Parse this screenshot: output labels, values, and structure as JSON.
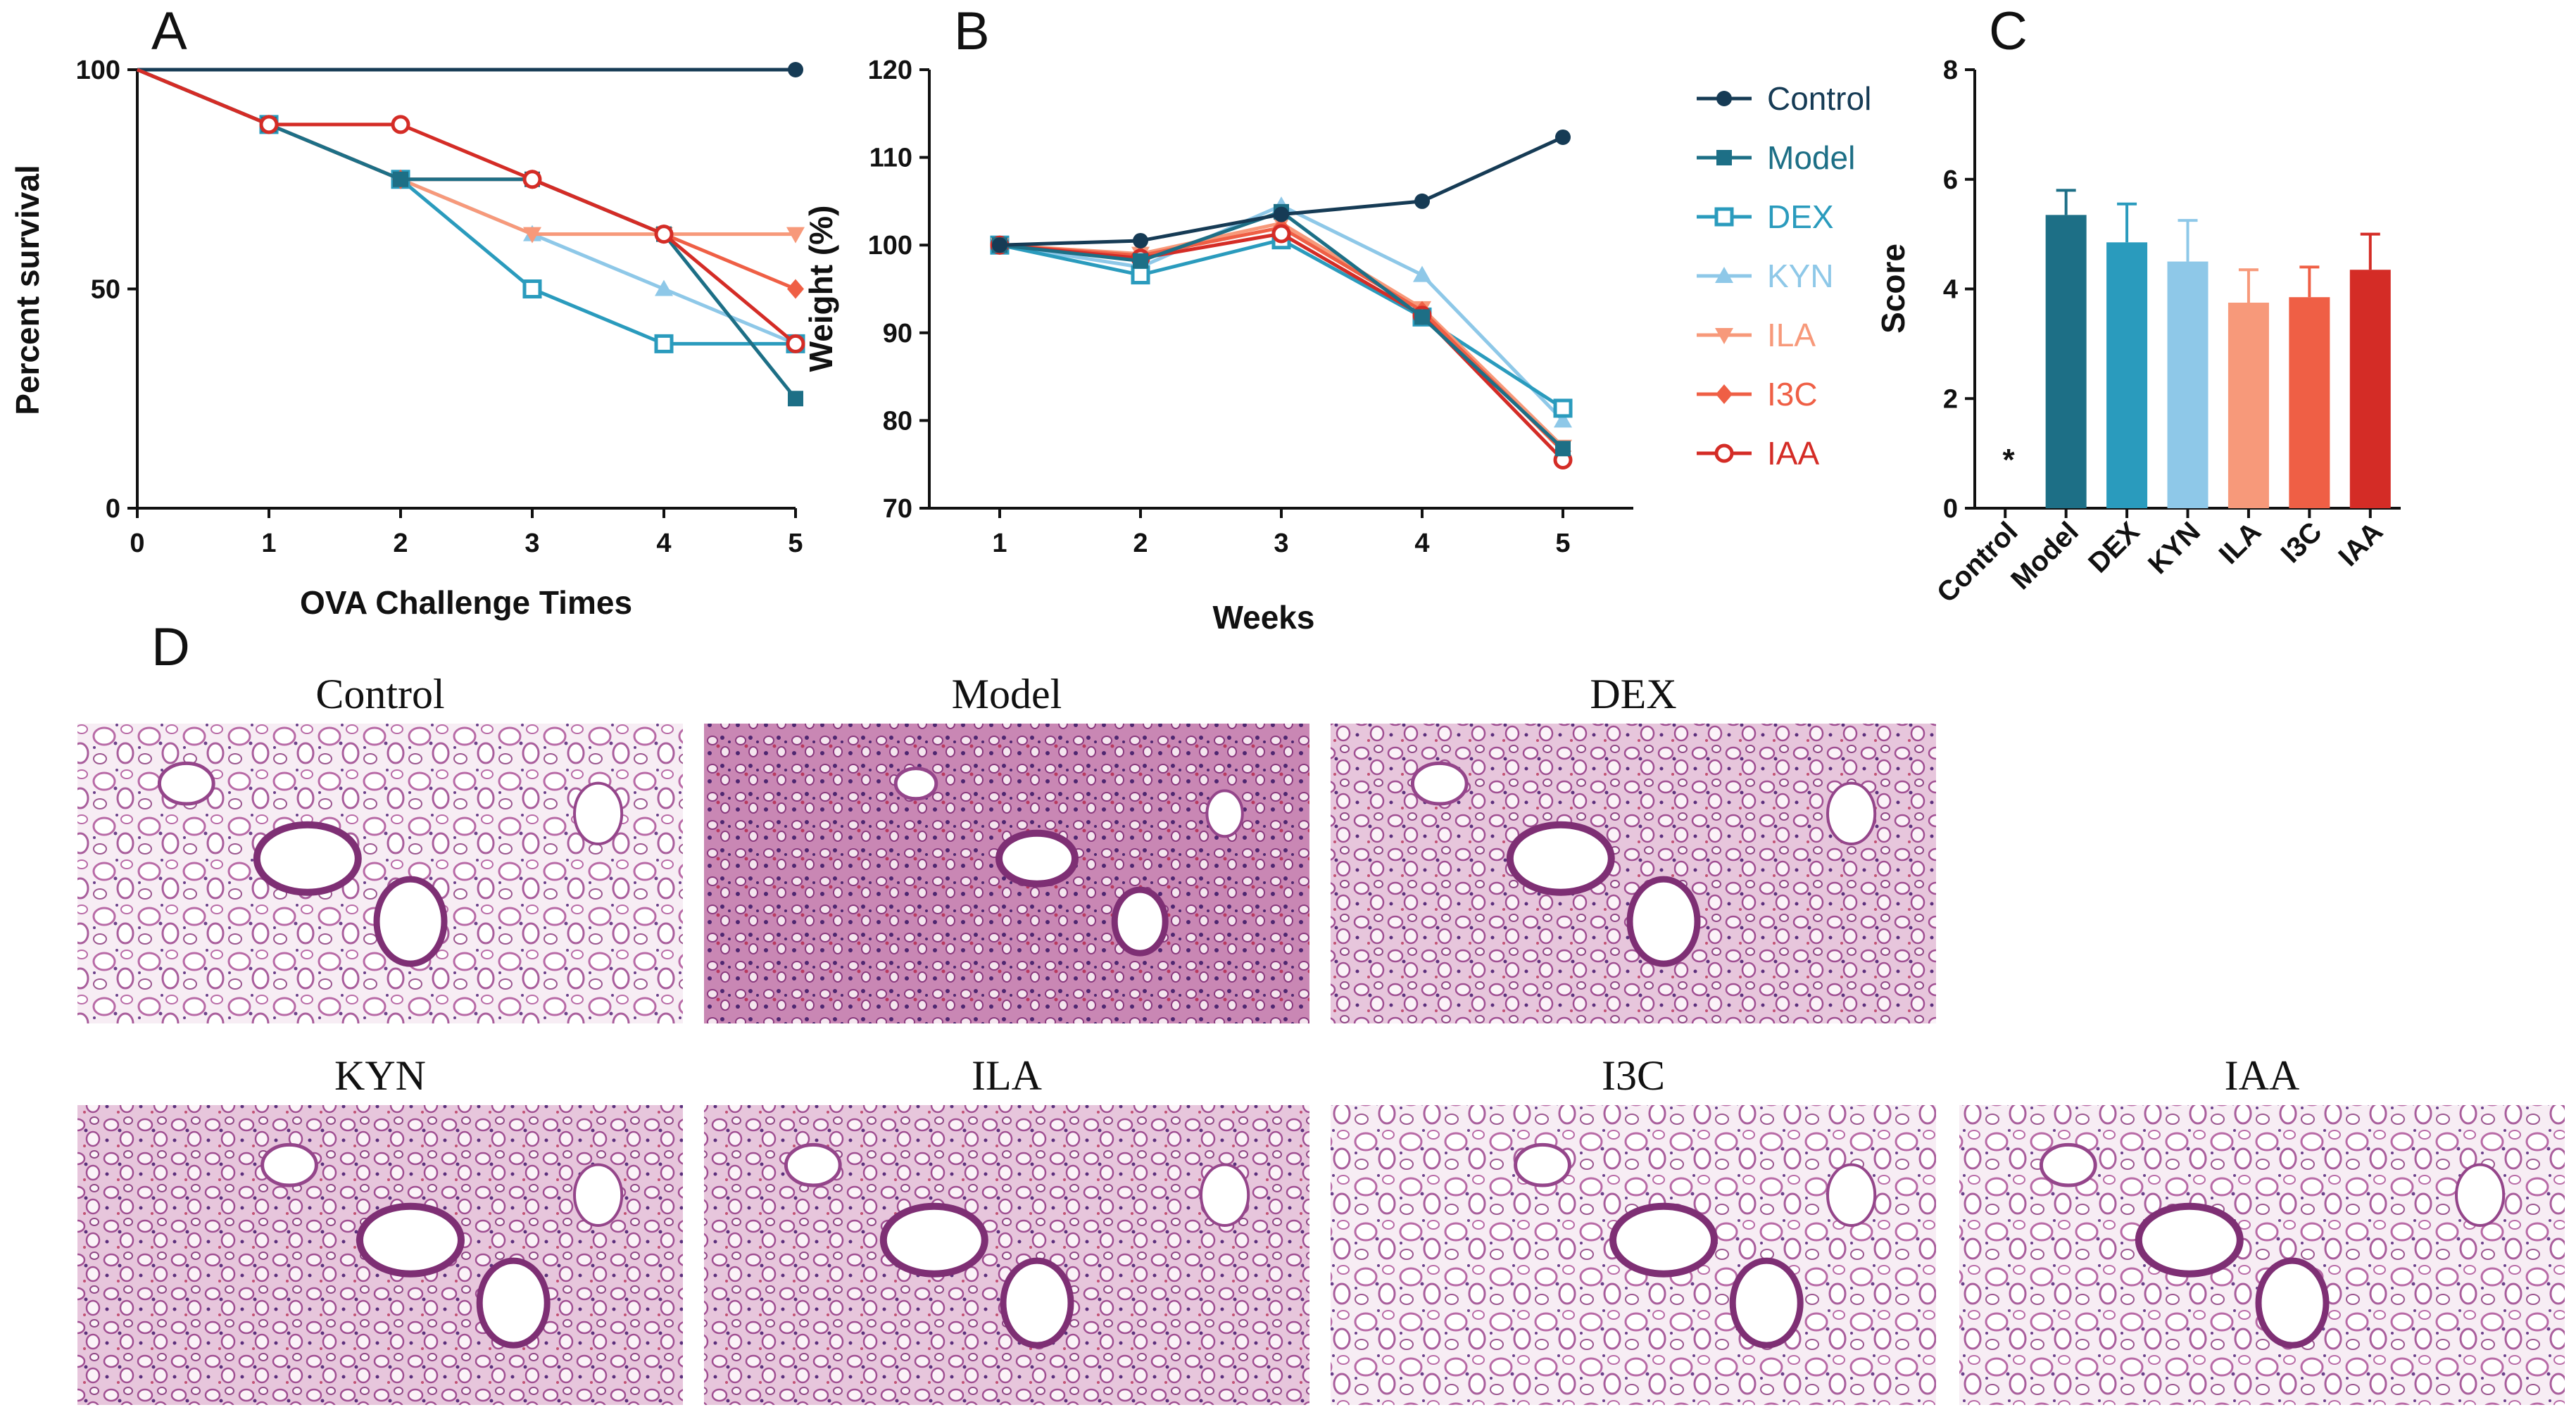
{
  "panels": {
    "a": "A",
    "b": "B",
    "c": "C",
    "d": "D"
  },
  "colors": {
    "Control": "#163b55",
    "Model": "#1d6f86",
    "DEX": "#2a9bbd",
    "KYN": "#8ec8e8",
    "ILA": "#f7997a",
    "I3C": "#ef5f45",
    "IAA": "#d42c26"
  },
  "chart_data": [
    {
      "id": "survival",
      "type": "line",
      "title": "",
      "xlabel": "OVA Challenge Times",
      "ylabel": "Percent survival",
      "x": [
        0,
        1,
        2,
        3,
        4,
        5
      ],
      "xlim": [
        0,
        5
      ],
      "ylim": [
        0,
        100
      ],
      "xticks": [
        "0",
        "1",
        "2",
        "3",
        "4",
        "5"
      ],
      "yticks": [
        "0",
        "50",
        "100"
      ],
      "series": [
        {
          "name": "Control",
          "values": [
            100,
            100,
            100,
            100,
            100,
            100
          ]
        },
        {
          "name": "Model",
          "values": [
            100,
            87.5,
            75,
            75,
            62.5,
            25
          ]
        },
        {
          "name": "DEX",
          "values": [
            100,
            87.5,
            75,
            50,
            37.5,
            37.5
          ]
        },
        {
          "name": "KYN",
          "values": [
            100,
            87.5,
            75,
            62.5,
            50,
            37.5
          ]
        },
        {
          "name": "ILA",
          "values": [
            100,
            87.5,
            75,
            62.5,
            62.5,
            62.5
          ]
        },
        {
          "name": "I3C",
          "values": [
            100,
            87.5,
            75,
            75,
            62.5,
            50
          ]
        },
        {
          "name": "IAA",
          "values": [
            100,
            87.5,
            87.5,
            75,
            62.5,
            37.5
          ]
        }
      ]
    },
    {
      "id": "weight",
      "type": "line",
      "title": "",
      "xlabel": "Weeks",
      "ylabel": "Weight (%)",
      "x": [
        1,
        2,
        3,
        4,
        5
      ],
      "xlim": [
        0.5,
        5.5
      ],
      "ylim": [
        70,
        120
      ],
      "xticks": [
        "1",
        "2",
        "3",
        "4",
        "5"
      ],
      "yticks": [
        "70",
        "80",
        "90",
        "100",
        "110",
        "120"
      ],
      "series": [
        {
          "name": "Control",
          "values": [
            100,
            100.5,
            103.5,
            105,
            112.3
          ]
        },
        {
          "name": "Model",
          "values": [
            100,
            98.2,
            103.8,
            91.8,
            76.8
          ]
        },
        {
          "name": "DEX",
          "values": [
            100,
            96.6,
            100.6,
            91.8,
            81.4
          ]
        },
        {
          "name": "KYN",
          "values": [
            100,
            97.5,
            104.5,
            96.6,
            80
          ]
        },
        {
          "name": "ILA",
          "values": [
            100,
            99,
            102.5,
            92.8,
            77
          ]
        },
        {
          "name": "I3C",
          "values": [
            100,
            98.8,
            102,
            92.5,
            76.5
          ]
        },
        {
          "name": "IAA",
          "values": [
            100,
            98.5,
            101.3,
            92,
            75.5
          ]
        }
      ],
      "legend": [
        "Control",
        "Model",
        "DEX",
        "KYN",
        "ILA",
        "I3C",
        "IAA"
      ],
      "legend_position": "right"
    },
    {
      "id": "score",
      "type": "bar",
      "title": "",
      "xlabel": "",
      "ylabel": "Score",
      "categories": [
        "Control",
        "Model",
        "DEX",
        "KYN",
        "ILA",
        "I3C",
        "IAA"
      ],
      "values": [
        0,
        5.35,
        4.85,
        4.5,
        3.75,
        3.85,
        4.35
      ],
      "errors": [
        0,
        0.45,
        0.7,
        0.75,
        0.6,
        0.55,
        0.65
      ],
      "ylim": [
        0,
        8
      ],
      "yticks": [
        "0",
        "2",
        "4",
        "6",
        "8"
      ],
      "annotations": [
        "*"
      ]
    }
  ],
  "micrographs": [
    {
      "label": "Control",
      "style": "sparse"
    },
    {
      "label": "Model",
      "style": "dense"
    },
    {
      "label": "DEX",
      "style": "medium"
    },
    {
      "label": "KYN",
      "style": "medium"
    },
    {
      "label": "ILA",
      "style": "medium"
    },
    {
      "label": "I3C",
      "style": "sparse"
    },
    {
      "label": "IAA",
      "style": "sparse"
    }
  ]
}
